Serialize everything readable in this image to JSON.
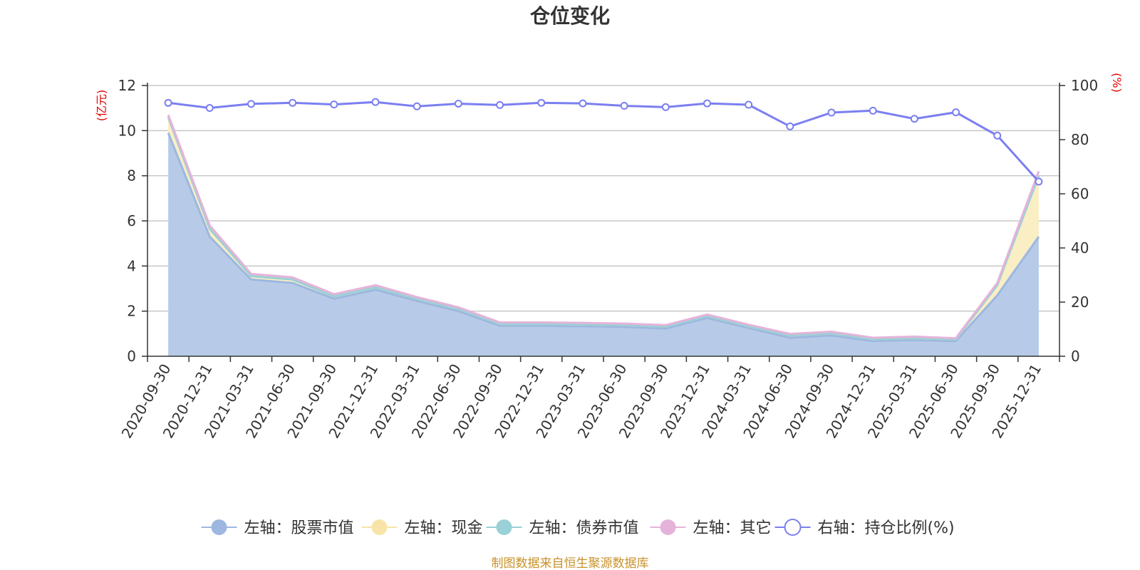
{
  "title": "仓位变化",
  "footer": "制图数据来自恒生聚源数据库",
  "chart_data": {
    "type": "area",
    "categories": [
      "2020-09-30",
      "2020-12-31",
      "2021-03-31",
      "2021-06-30",
      "2021-09-30",
      "2021-12-31",
      "2022-03-31",
      "2022-06-30",
      "2022-09-30",
      "2022-12-31",
      "2023-03-31",
      "2023-06-30",
      "2023-09-30",
      "2023-12-31",
      "2024-03-31",
      "2024-06-30",
      "2024-09-30",
      "2024-12-31",
      "2025-03-31",
      "2025-06-30",
      "2025-09-30",
      "2025-12-31"
    ],
    "left_axis": {
      "unit": "(亿元)",
      "ylim": [
        0,
        12
      ],
      "ticks": [
        0,
        2,
        4,
        6,
        8,
        10,
        12
      ]
    },
    "right_axis": {
      "unit": "(%)",
      "ylim": [
        0,
        100
      ],
      "ticks": [
        0,
        20,
        40,
        60,
        80,
        100
      ]
    },
    "grid": true,
    "legend_position": "bottom",
    "series": [
      {
        "name": "左轴：股票市值",
        "axis": "left",
        "color": "#9db7e0",
        "fill": "#b7cbe8",
        "values": [
          9.9,
          5.3,
          3.4,
          3.25,
          2.55,
          2.95,
          2.45,
          2.0,
          1.35,
          1.35,
          1.33,
          1.3,
          1.23,
          1.7,
          1.25,
          0.82,
          0.92,
          0.67,
          0.72,
          0.67,
          2.7,
          5.3
        ]
      },
      {
        "name": "左轴：现金",
        "axis": "left",
        "color": "#f8e4a8",
        "fill": "#f9eec4",
        "values": [
          0.7,
          0.35,
          0.15,
          0.15,
          0.1,
          0.1,
          0.1,
          0.1,
          0.08,
          0.08,
          0.08,
          0.08,
          0.08,
          0.08,
          0.08,
          0.1,
          0.1,
          0.08,
          0.08,
          0.08,
          0.45,
          2.7
        ]
      },
      {
        "name": "左轴：债券市值",
        "axis": "left",
        "color": "#99d1d6",
        "fill": "#c9e9ec",
        "values": [
          0,
          0,
          0,
          0,
          0,
          0,
          0,
          0,
          0,
          0,
          0,
          0,
          0,
          0,
          0,
          0,
          0,
          0,
          0,
          0,
          0,
          0
        ]
      },
      {
        "name": "左轴：其它",
        "axis": "left",
        "color": "#e5b3da",
        "fill": "#efd0e8",
        "values": [
          0.1,
          0.15,
          0.1,
          0.1,
          0.1,
          0.1,
          0.07,
          0.07,
          0.07,
          0.07,
          0.07,
          0.07,
          0.07,
          0.07,
          0.07,
          0.07,
          0.07,
          0.07,
          0.07,
          0.05,
          0.1,
          0.2
        ]
      },
      {
        "name": "右轴：持仓比例(%)",
        "axis": "right",
        "color": "#7b7ff0",
        "values": [
          93.6,
          91.7,
          93.2,
          93.6,
          93.0,
          93.9,
          92.3,
          93.3,
          92.8,
          93.6,
          93.4,
          92.5,
          92.0,
          93.4,
          92.9,
          84.9,
          90.0,
          90.7,
          87.7,
          90.1,
          81.5,
          64.5
        ]
      }
    ]
  }
}
